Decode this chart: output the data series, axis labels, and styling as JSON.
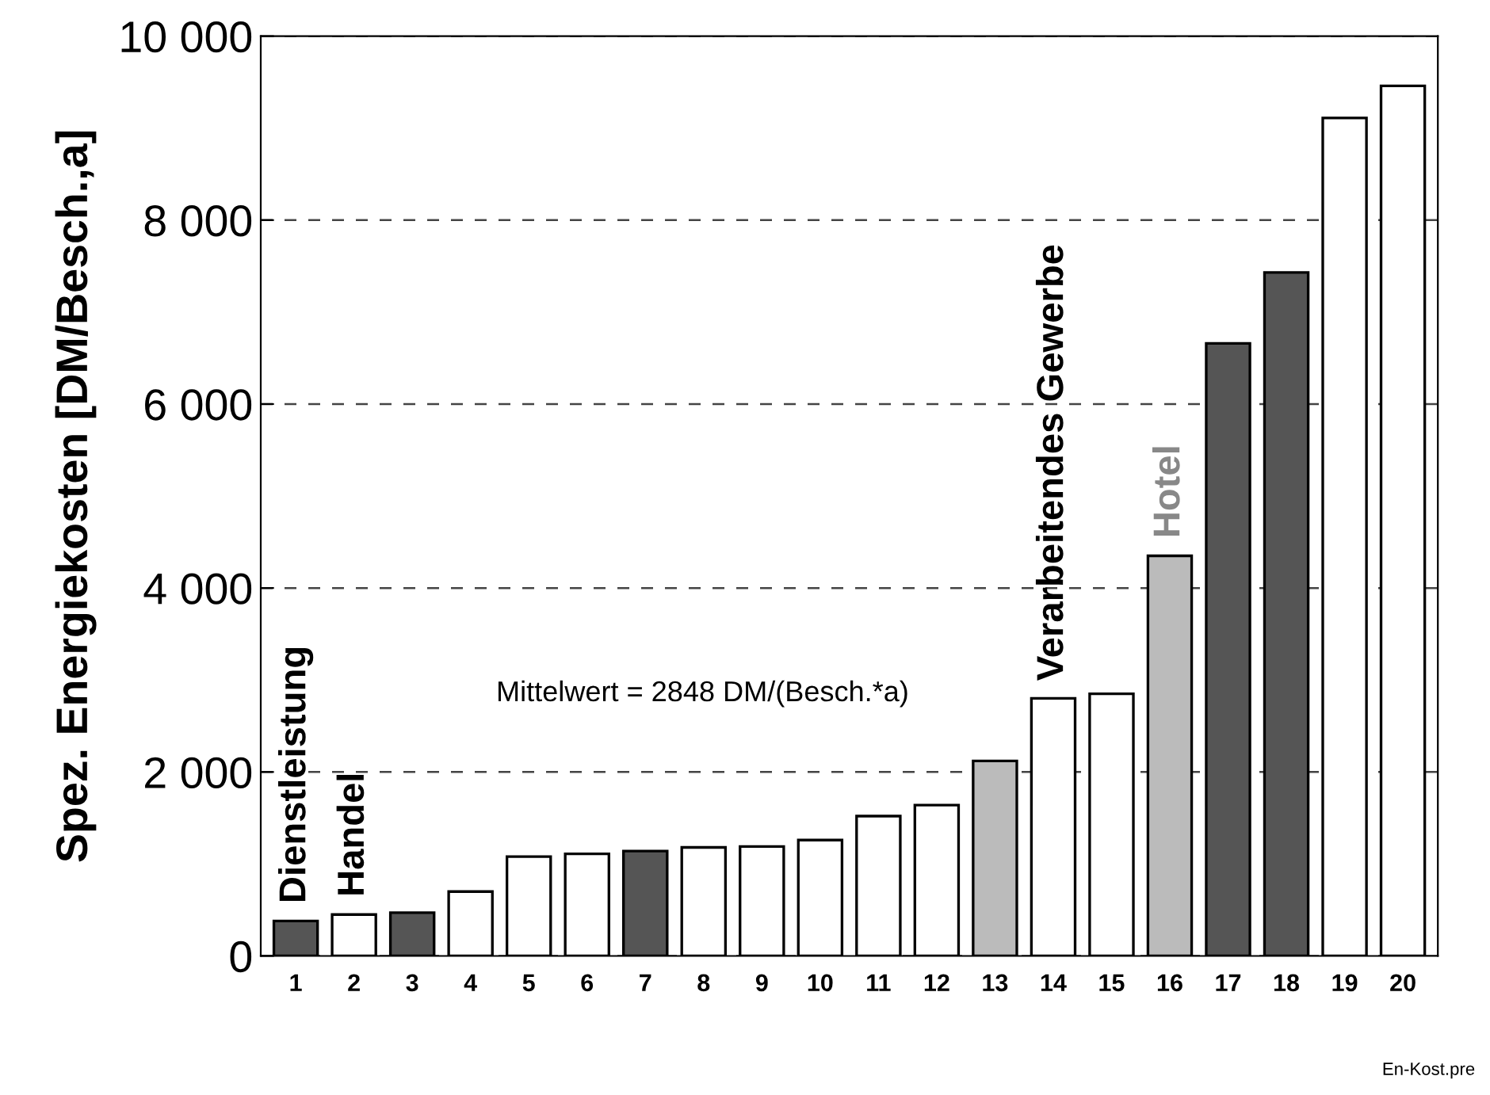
{
  "chart_data": {
    "type": "bar",
    "categories": [
      "1",
      "2",
      "3",
      "4",
      "5",
      "6",
      "7",
      "8",
      "9",
      "10",
      "11",
      "12",
      "13",
      "14",
      "15",
      "16",
      "17",
      "18",
      "19",
      "20"
    ],
    "values": [
      380,
      450,
      470,
      700,
      1080,
      1110,
      1140,
      1180,
      1190,
      1260,
      1520,
      1640,
      2120,
      2800,
      2850,
      4350,
      6660,
      7430,
      9110,
      9460
    ],
    "colors": [
      "#555555",
      "#ffffff",
      "#555555",
      "#ffffff",
      "#ffffff",
      "#ffffff",
      "#555555",
      "#ffffff",
      "#ffffff",
      "#ffffff",
      "#ffffff",
      "#ffffff",
      "#bbbbbb",
      "#ffffff",
      "#ffffff",
      "#bbbbbb",
      "#555555",
      "#555555",
      "#ffffff",
      "#ffffff"
    ],
    "ylabel": "Spez. Energiekosten [DM/Besch.,a]",
    "ylim": [
      0,
      10000
    ],
    "yticks": [
      0,
      {
        "value": 2000,
        "label": "2 000"
      },
      {
        "value": 4000,
        "label": "4 000"
      },
      {
        "value": 6000,
        "label": "6 000"
      },
      {
        "value": 8000,
        "label": "8 000"
      },
      {
        "value": 10000,
        "label": "10 000"
      }
    ],
    "grid": "y",
    "annotations": [
      {
        "text": "Dienstleistung",
        "x": "1",
        "y": 380
      },
      {
        "text": "Handel",
        "x": "2",
        "y": 450
      },
      {
        "text": "Verarbeitendes Gewerbe",
        "x": "14",
        "y": 2800
      },
      {
        "text": "Hotel",
        "x": "16",
        "y": 4350
      },
      "Mittelwert = 2848 DM/(Besch.*a)",
      "En-Kost.pre"
    ]
  }
}
